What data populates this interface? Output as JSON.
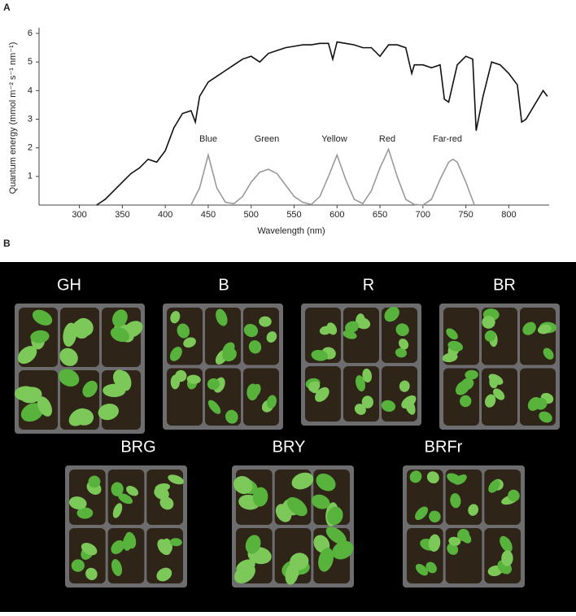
{
  "panel_labels": [
    "A",
    "B"
  ],
  "chart_data": {
    "type": "line",
    "xlabel": "Wavelength  (nm)",
    "ylabel": "Quantum energy (mmol m⁻² s⁻¹ nm⁻¹)",
    "xlim": [
      253,
      847
    ],
    "ylim": [
      0,
      6.2
    ],
    "xticks": [
      300,
      350,
      400,
      450,
      500,
      550,
      600,
      650,
      700,
      750,
      800
    ],
    "yticks": [
      1,
      2,
      3,
      4,
      5,
      6
    ],
    "grid": false,
    "annotations": [
      "Blue",
      "Green",
      "Yellow",
      "Red",
      "Far-red"
    ],
    "series": [
      {
        "color": "#111111",
        "x": [
          320,
          330,
          340,
          350,
          360,
          370,
          380,
          390,
          400,
          410,
          420,
          430,
          435,
          440,
          450,
          460,
          470,
          480,
          490,
          500,
          510,
          520,
          530,
          540,
          550,
          560,
          570,
          580,
          590,
          595,
          600,
          610,
          620,
          630,
          640,
          650,
          660,
          670,
          680,
          687,
          690,
          700,
          710,
          720,
          725,
          730,
          740,
          750,
          758,
          762,
          770,
          780,
          790,
          800,
          810,
          815,
          820,
          830,
          840,
          845
        ],
        "values": [
          0,
          0.2,
          0.5,
          0.8,
          1.1,
          1.3,
          1.6,
          1.5,
          1.9,
          2.7,
          3.2,
          3.3,
          2.9,
          3.8,
          4.3,
          4.5,
          4.7,
          4.9,
          5.1,
          5.2,
          5.0,
          5.3,
          5.4,
          5.5,
          5.55,
          5.6,
          5.6,
          5.65,
          5.65,
          5.1,
          5.7,
          5.65,
          5.6,
          5.5,
          5.5,
          5.2,
          5.6,
          5.6,
          5.5,
          4.6,
          4.9,
          4.9,
          4.8,
          4.9,
          3.7,
          3.6,
          4.9,
          5.2,
          5.1,
          2.6,
          3.8,
          5.0,
          4.9,
          4.6,
          4.2,
          2.9,
          3.0,
          3.5,
          4.0,
          3.8
        ]
      },
      {
        "color": "#999999",
        "x": [
          430,
          440,
          450,
          460,
          470,
          480,
          490,
          500,
          510,
          520,
          530,
          540,
          550,
          560,
          570,
          580,
          590,
          600,
          610,
          620,
          630,
          640,
          650,
          660,
          670,
          680,
          690,
          700,
          710,
          720,
          730,
          735,
          740,
          750,
          760
        ],
        "values": [
          0,
          0.6,
          1.75,
          0.6,
          0.1,
          0.05,
          0.3,
          0.8,
          1.15,
          1.25,
          1.1,
          0.7,
          0.3,
          0.1,
          0.02,
          0.3,
          1.0,
          1.75,
          0.9,
          0.2,
          0.05,
          0.5,
          1.3,
          1.95,
          1.0,
          0.2,
          0.02,
          0,
          0.2,
          0.9,
          1.5,
          1.6,
          1.5,
          0.8,
          0
        ]
      }
    ]
  },
  "photo_labels": [
    "GH",
    "B",
    "R",
    "BR",
    "BRG",
    "BRY",
    "BRFr"
  ]
}
